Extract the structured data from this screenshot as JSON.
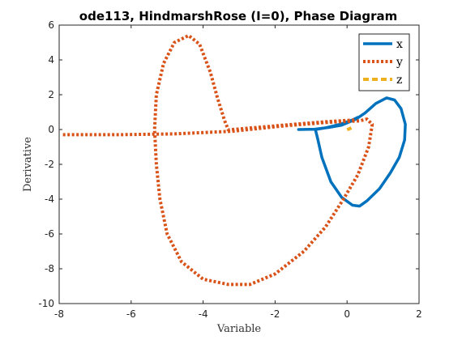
{
  "chart_data": {
    "type": "line",
    "title": "ode113, HindmarshRose (I=0), Phase Diagram",
    "xlabel": "Variable",
    "ylabel": "Derivative",
    "xlim": [
      -8,
      2
    ],
    "ylim": [
      -10,
      6
    ],
    "xticks": [
      -8,
      -6,
      -4,
      -2,
      0,
      2
    ],
    "yticks": [
      -10,
      -8,
      -6,
      -4,
      -2,
      0,
      2,
      4,
      6
    ],
    "xtick_labels": [
      "-8",
      "-6",
      "-4",
      "-2",
      "0",
      "2"
    ],
    "ytick_labels": [
      "-10",
      "-8",
      "-6",
      "-4",
      "-2",
      "0",
      "2",
      "4",
      "6"
    ],
    "grid": false,
    "legend_position": "top-right",
    "series": [
      {
        "name": "x",
        "color": "#0072BD",
        "line_style": "solid",
        "points": [
          [
            -1.35,
            0.0
          ],
          [
            -0.9,
            0.02
          ],
          [
            -0.5,
            0.12
          ],
          [
            -0.15,
            0.25
          ],
          [
            0.25,
            0.6
          ],
          [
            0.5,
            0.95
          ],
          [
            0.8,
            1.5
          ],
          [
            1.1,
            1.82
          ],
          [
            1.32,
            1.7
          ],
          [
            1.5,
            1.2
          ],
          [
            1.62,
            0.3
          ],
          [
            1.6,
            -0.6
          ],
          [
            1.45,
            -1.6
          ],
          [
            1.2,
            -2.5
          ],
          [
            0.9,
            -3.4
          ],
          [
            0.55,
            -4.1
          ],
          [
            0.35,
            -4.4
          ],
          [
            0.15,
            -4.35
          ],
          [
            -0.15,
            -3.9
          ],
          [
            -0.45,
            -3.0
          ],
          [
            -0.7,
            -1.6
          ],
          [
            -0.82,
            -0.5
          ],
          [
            -0.88,
            0.0
          ],
          [
            -0.6,
            0.1
          ],
          [
            -0.2,
            0.3
          ],
          [
            0.15,
            0.55
          ],
          [
            0.3,
            0.7
          ],
          [
            0.28,
            0.68
          ]
        ]
      },
      {
        "name": "y",
        "color": "#D95319",
        "line_style": "dotted",
        "points": [
          [
            0.2,
            0.55
          ],
          [
            -0.5,
            0.46
          ],
          [
            -1.5,
            0.3
          ],
          [
            -2.5,
            0.12
          ],
          [
            -3.3,
            -0.02
          ],
          [
            -3.4,
            0.5
          ],
          [
            -3.6,
            1.8
          ],
          [
            -3.8,
            3.3
          ],
          [
            -4.1,
            4.9
          ],
          [
            -4.4,
            5.4
          ],
          [
            -4.8,
            5.0
          ],
          [
            -5.1,
            3.8
          ],
          [
            -5.3,
            2.0
          ],
          [
            -5.35,
            0.0
          ],
          [
            -5.3,
            -2.0
          ],
          [
            -5.2,
            -4.0
          ],
          [
            -5.0,
            -6.0
          ],
          [
            -4.6,
            -7.6
          ],
          [
            -4.0,
            -8.6
          ],
          [
            -3.3,
            -8.9
          ],
          [
            -2.7,
            -8.9
          ],
          [
            -2.0,
            -8.3
          ],
          [
            -1.2,
            -7.0
          ],
          [
            -0.6,
            -5.6
          ],
          [
            -0.1,
            -4.0
          ],
          [
            0.3,
            -2.6
          ],
          [
            0.6,
            -1.0
          ],
          [
            0.7,
            0.3
          ],
          [
            0.55,
            0.6
          ],
          [
            0.35,
            0.5
          ],
          [
            -0.5,
            0.42
          ],
          [
            -1.8,
            0.2
          ],
          [
            -3.2,
            -0.1
          ],
          [
            -4.8,
            -0.25
          ],
          [
            -6.3,
            -0.3
          ],
          [
            -7.7,
            -0.3
          ],
          [
            -7.9,
            -0.3
          ]
        ]
      },
      {
        "name": "z",
        "color": "#EDB120",
        "line_style": "dashed",
        "points": [
          [
            0.0,
            0.0
          ],
          [
            0.05,
            0.03
          ],
          [
            0.12,
            0.1
          ]
        ]
      }
    ]
  }
}
